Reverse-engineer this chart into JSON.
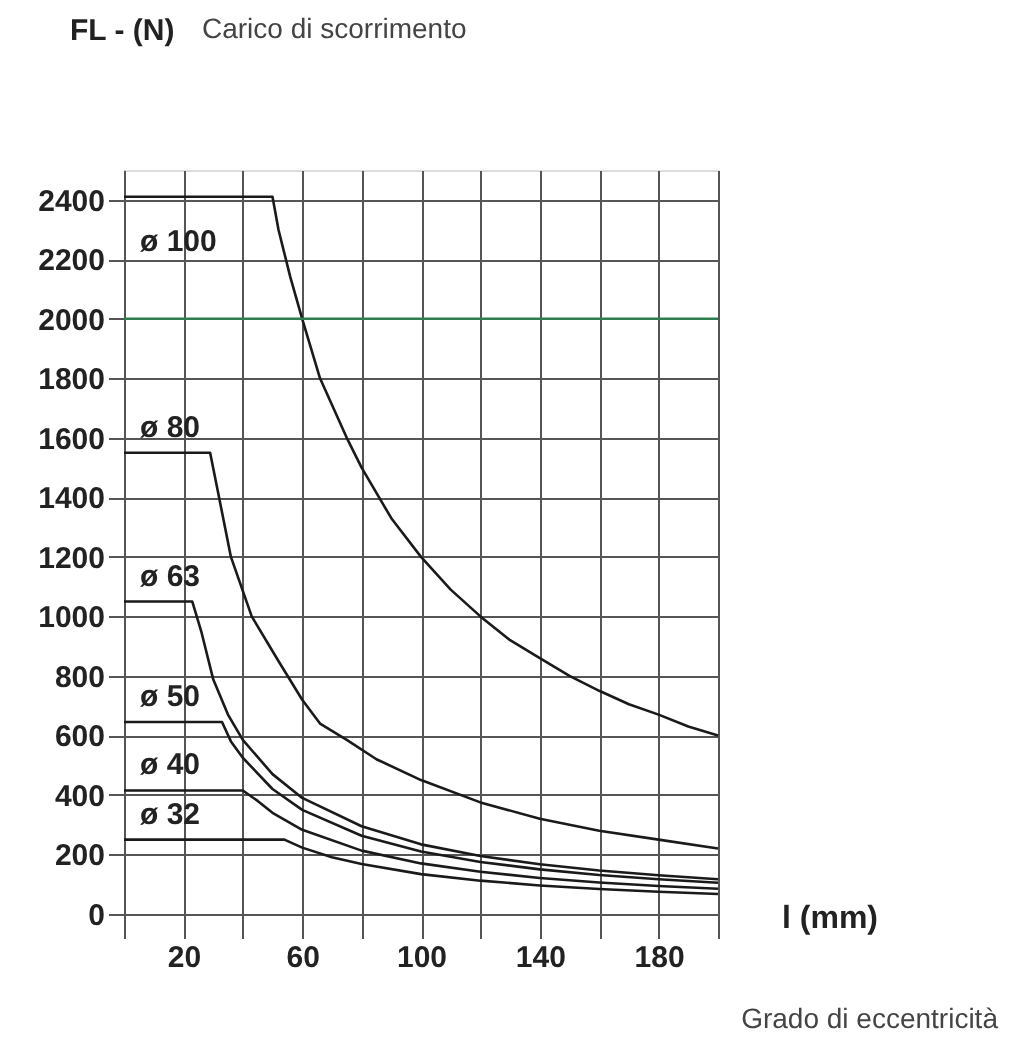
{
  "chart_data": {
    "type": "line",
    "title": "Carico di scorrimento",
    "ylabel": "FL - (N)",
    "xlabel": "l (mm)",
    "annotations": [
      "Grado di eccentricità"
    ],
    "xlim": [
      0,
      200
    ],
    "xticks": [
      {
        "value": 0,
        "label": null
      },
      20,
      {
        "value": 40,
        "label": null
      },
      60,
      {
        "value": 80,
        "label": null
      },
      100,
      {
        "value": 120,
        "label": null
      },
      140,
      {
        "value": 160,
        "label": null
      },
      180,
      {
        "value": 200,
        "label": null
      }
    ],
    "ylim": [
      0,
      2500
    ],
    "yticks": [
      0,
      200,
      400,
      600,
      800,
      1000,
      1200,
      1400,
      1600,
      1800,
      2000,
      2200,
      2400
    ],
    "grid": true,
    "marker": "none",
    "line_style": "solid",
    "ref_lines": [
      {
        "axis": "y",
        "value": 2000,
        "color": "#2e7d4f"
      }
    ],
    "series": [
      {
        "name": "ø 100",
        "color": "#1a1a1a",
        "x": [
          0,
          50,
          52,
          56,
          60,
          66,
          75,
          80,
          90,
          100,
          110,
          120,
          130,
          140,
          150,
          160,
          170,
          180,
          190,
          200
        ],
        "values": [
          2410,
          2410,
          2300,
          2140,
          2000,
          1800,
          1600,
          1500,
          1330,
          1200,
          1090,
          1000,
          920,
          860,
          800,
          750,
          705,
          670,
          630,
          600
        ]
      },
      {
        "name": "ø 80",
        "color": "#1a1a1a",
        "x": [
          0,
          29,
          32,
          36,
          43,
          52,
          60,
          66,
          75,
          85,
          100,
          120,
          140,
          160,
          180,
          200
        ],
        "values": [
          1550,
          1550,
          1400,
          1200,
          1000,
          850,
          720,
          640,
          585,
          520,
          450,
          375,
          320,
          280,
          250,
          220
        ]
      },
      {
        "name": "ø 63",
        "color": "#1a1a1a",
        "x": [
          0,
          23,
          26,
          30,
          35,
          40,
          50,
          60,
          80,
          100,
          120,
          140,
          160,
          180,
          200
        ],
        "values": [
          1050,
          1050,
          950,
          790,
          670,
          585,
          470,
          390,
          295,
          234,
          195,
          167,
          146,
          130,
          117
        ]
      },
      {
        "name": "ø 50",
        "color": "#1a1a1a",
        "x": [
          0,
          33,
          36,
          40,
          50,
          60,
          80,
          100,
          120,
          140,
          160,
          180,
          200
        ],
        "values": [
          645,
          645,
          580,
          525,
          420,
          350,
          263,
          210,
          175,
          150,
          131,
          117,
          105
        ]
      },
      {
        "name": "ø 40",
        "color": "#1a1a1a",
        "x": [
          0,
          40,
          45,
          50,
          60,
          80,
          100,
          120,
          140,
          160,
          180,
          200
        ],
        "values": [
          415,
          415,
          380,
          340,
          283,
          213,
          170,
          142,
          121,
          106,
          94,
          85
        ]
      },
      {
        "name": "ø 32",
        "color": "#1a1a1a",
        "x": [
          0,
          54,
          60,
          70,
          80,
          100,
          120,
          140,
          160,
          180,
          200
        ],
        "values": [
          250,
          250,
          223,
          191,
          168,
          134,
          112,
          96,
          84,
          75,
          67
        ]
      }
    ]
  }
}
